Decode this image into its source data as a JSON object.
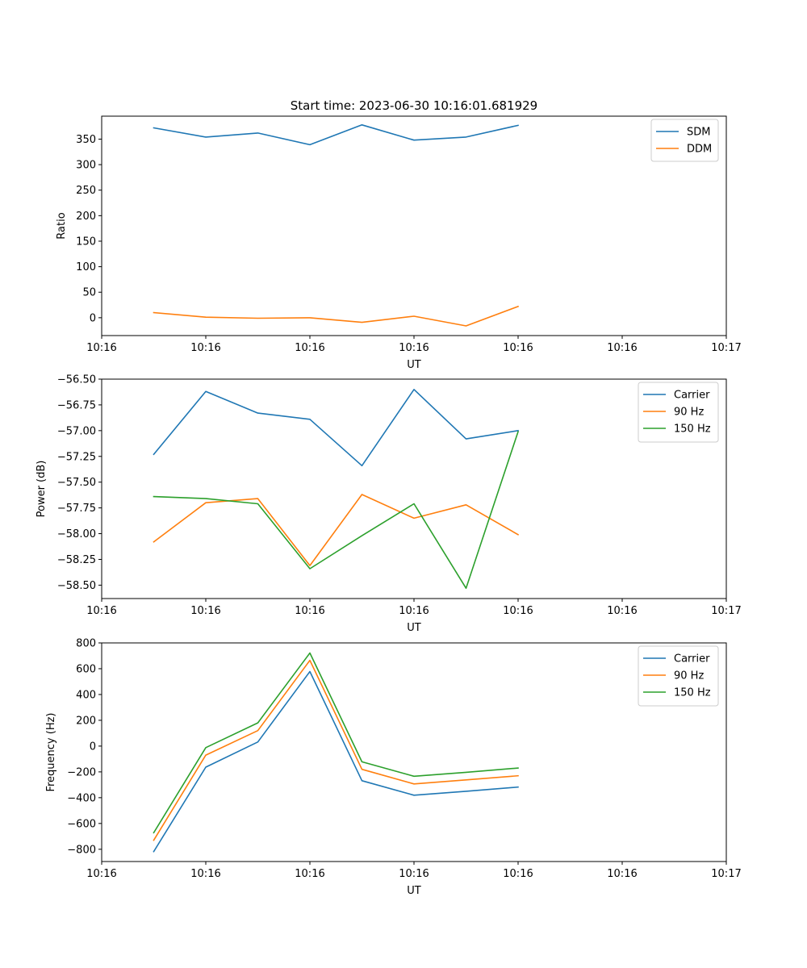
{
  "figure": {
    "title": "Start time: 2023-06-30 10:16:01.681929"
  },
  "chart_data": [
    {
      "type": "line",
      "title": "Start time: 2023-06-30 10:16:01.681929",
      "xlabel": "UT",
      "ylabel": "Ratio",
      "xlim": [
        0,
        12
      ],
      "x": [
        1,
        2,
        3,
        4,
        5,
        6,
        7,
        8
      ],
      "xticks": [
        0,
        2,
        4,
        6,
        8,
        10,
        12
      ],
      "xtick_labels": [
        "10:16",
        "10:16",
        "10:16",
        "10:16",
        "10:16",
        "10:16",
        "10:17"
      ],
      "ylim": [
        -35,
        395
      ],
      "yticks": [
        0,
        50,
        100,
        150,
        200,
        250,
        300,
        350
      ],
      "legend": "top-right",
      "grid": false,
      "series": [
        {
          "name": "SDM",
          "color": "#1f77b4",
          "values": [
            372,
            354,
            362,
            339,
            378,
            348,
            354,
            377
          ]
        },
        {
          "name": "DDM",
          "color": "#ff7f0e",
          "values": [
            10,
            1,
            -1,
            0,
            -9,
            3,
            -16,
            22
          ]
        }
      ]
    },
    {
      "type": "line",
      "title": "",
      "xlabel": "UT",
      "ylabel": "Power (dB)",
      "xlim": [
        0,
        12
      ],
      "x": [
        1,
        2,
        3,
        4,
        5,
        6,
        7,
        8
      ],
      "xticks": [
        0,
        2,
        4,
        6,
        8,
        10,
        12
      ],
      "xtick_labels": [
        "10:16",
        "10:16",
        "10:16",
        "10:16",
        "10:16",
        "10:16",
        "10:17"
      ],
      "ylim": [
        -58.63,
        -56.5
      ],
      "yticks": [
        -56.5,
        -56.75,
        -57.0,
        -57.25,
        -57.5,
        -57.75,
        -58.0,
        -58.25,
        -58.5
      ],
      "ytick_labels": [
        "−56.50",
        "−56.75",
        "−57.00",
        "−57.25",
        "−57.50",
        "−57.75",
        "−58.00",
        "−58.25",
        "−58.50"
      ],
      "legend": "top-right",
      "grid": false,
      "series": [
        {
          "name": "Carrier",
          "color": "#1f77b4",
          "values": [
            -57.23,
            -56.62,
            -56.83,
            -56.89,
            -57.34,
            -56.6,
            -57.08,
            -57.0
          ]
        },
        {
          "name": "90 Hz",
          "color": "#ff7f0e",
          "values": [
            -58.08,
            -57.7,
            -57.66,
            -58.31,
            -57.62,
            -57.85,
            -57.72,
            -58.01
          ]
        },
        {
          "name": "150 Hz",
          "color": "#2ca02c",
          "values": [
            -57.64,
            -57.66,
            -57.71,
            -58.34,
            -58.02,
            -57.71,
            -58.53,
            -57.01
          ]
        }
      ]
    },
    {
      "type": "line",
      "title": "",
      "xlabel": "UT",
      "ylabel": "Frequency (Hz)",
      "xlim": [
        0,
        12
      ],
      "x": [
        1,
        2,
        3,
        4,
        5,
        6,
        7,
        8
      ],
      "xticks": [
        0,
        2,
        4,
        6,
        8,
        10,
        12
      ],
      "xtick_labels": [
        "10:16",
        "10:16",
        "10:16",
        "10:16",
        "10:16",
        "10:16",
        "10:17"
      ],
      "ylim": [
        -895,
        800
      ],
      "yticks": [
        -800,
        -600,
        -400,
        -200,
        0,
        200,
        400,
        600,
        800
      ],
      "ytick_labels": [
        "−800",
        "−600",
        "−400",
        "−200",
        "0",
        "200",
        "400",
        "600",
        "800"
      ],
      "legend": "top-right",
      "grid": false,
      "series": [
        {
          "name": "Carrier",
          "color": "#1f77b4",
          "values": [
            -818,
            -163,
            32,
            578,
            -268,
            -381,
            -350,
            -318
          ]
        },
        {
          "name": "90 Hz",
          "color": "#ff7f0e",
          "values": [
            -730,
            -70,
            120,
            665,
            -180,
            -293,
            -262,
            -230
          ]
        },
        {
          "name": "150 Hz",
          "color": "#2ca02c",
          "values": [
            -672,
            -12,
            180,
            722,
            -122,
            -234,
            -203,
            -170
          ]
        }
      ]
    }
  ]
}
